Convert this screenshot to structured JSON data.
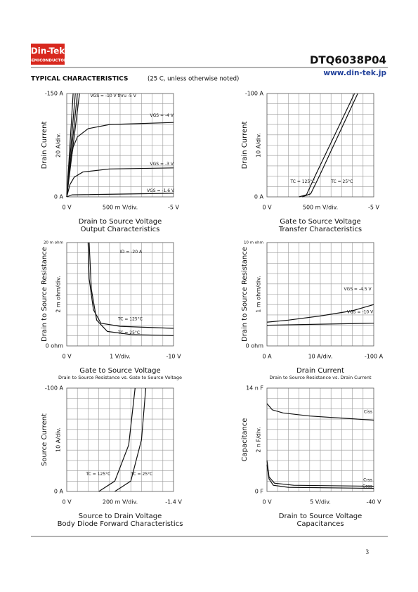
{
  "header": {
    "logo": "Din-Tek",
    "logo_sub": "SEMICONDUCTOR",
    "part_number": "DTQ6038P04",
    "website": "www.din-tek.jp",
    "section_title": "TYPICAL CHARACTERISTICS",
    "section_note": "(25  C, unless otherwise noted)"
  },
  "charts": [
    {
      "y_top": "-150  A",
      "y_bottom": "0  A",
      "y_title": "Drain Current",
      "y_div": "20  A/div.",
      "x_left": "0  V",
      "x_div": "500 m V/div.",
      "x_right": "-5  V",
      "title": "Drain to Source Voltage",
      "subtitle": "Output Characteristics",
      "annotations": [
        "VGS = -10 V thru -5 V",
        "VGS = -4 V",
        "VGS = -3 V",
        "VGS = -1.6 V"
      ]
    },
    {
      "y_top": "-100  A",
      "y_bottom": "0  A",
      "y_title": "Drain Current",
      "y_div": "10  A/div.",
      "x_left": "0  V",
      "x_div": "500 m V/div.",
      "x_right": "-5  V",
      "title": "Gate to Source Voltage",
      "subtitle": "Transfer Characteristics",
      "annotations": [
        "TC = 125°C",
        "TC = 25°C"
      ]
    },
    {
      "y_top": "20 m ohm",
      "y_bottom": "0  ohm",
      "y_title": "Drain to Source Resistance",
      "y_div": "2  m ohm/div.",
      "x_left": "0  V",
      "x_div": "1  V/div.",
      "x_right": "-10  V",
      "title": "Gate to Source Voltage",
      "subtitle": "Drain to Source Resistance vs. Gate to Source Voltage",
      "annotations": [
        "ID = -20 A",
        "TC = 125°C",
        "TC = 25°C"
      ]
    },
    {
      "y_top": "10 m ohm",
      "y_bottom": "0  ohm",
      "y_title": "Drain to Source Resistance",
      "y_div": "1  m ohm/div.",
      "x_left": "0  A",
      "x_div": "10  A/div.",
      "x_right": "-100  A",
      "title": "Drain Current",
      "subtitle": "Drain to Source Resistance vs. Drain Current",
      "annotations": [
        "VGS = -4.5 V",
        "VGS = -10 V"
      ]
    },
    {
      "y_top": "-100  A",
      "y_bottom": "0  A",
      "y_title": "Source Current",
      "y_div": "10  A/div.",
      "x_left": "0  V",
      "x_div": "200 m V/div.",
      "x_right": "-1.4  V",
      "title": "Source to Drain Voltage",
      "subtitle": "Body Diode Forward Characteristics",
      "annotations": [
        "TC = 125°C",
        "TC = 25°C"
      ]
    },
    {
      "y_top": "14 n F",
      "y_bottom": "0  F",
      "y_title": "Capacitance",
      "y_div": "2  n F/div.",
      "x_left": "0  V",
      "x_div": "5  V/div.",
      "x_right": "-40  V",
      "title": "Drain to Source Voltage",
      "subtitle": "Capacitances",
      "annotations": [
        "Ciss",
        "Crss",
        "Coss"
      ]
    }
  ],
  "page_number": "3"
}
